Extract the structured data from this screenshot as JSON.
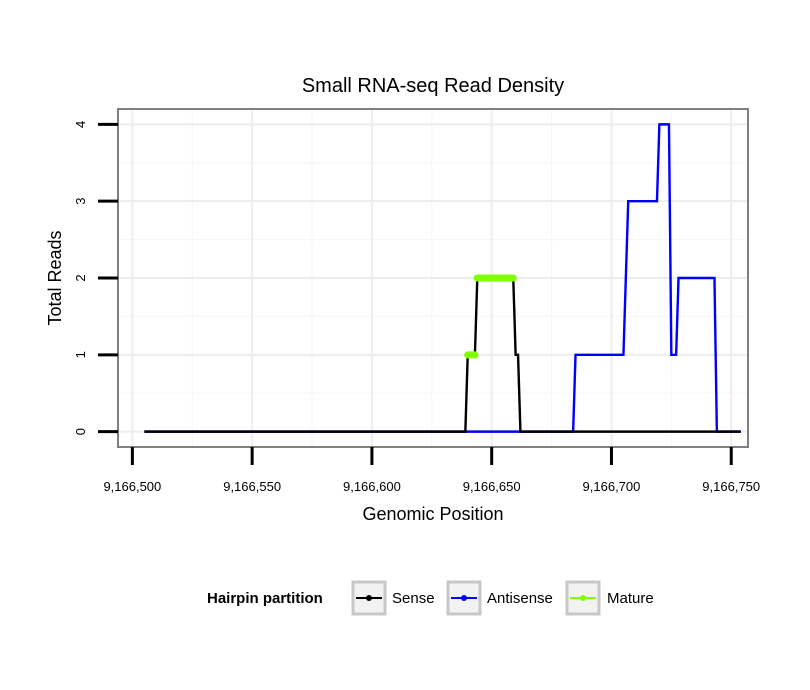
{
  "chart_data": {
    "type": "line",
    "title": "Small RNA-seq Read Density",
    "xlabel": "Genomic Position",
    "ylabel": "Total Reads",
    "xlim": [
      9166494,
      9166757
    ],
    "ylim": [
      -0.2,
      4.2
    ],
    "x_ticks": [
      9166500,
      9166550,
      9166600,
      9166650,
      9166700,
      9166750
    ],
    "x_tick_labels": [
      "9,166,500",
      "9,166,550",
      "9,166,600",
      "9,166,650",
      "9,166,700",
      "9,166,750"
    ],
    "y_ticks": [
      0,
      1,
      2,
      3,
      4
    ],
    "y_tick_labels": [
      "0",
      "1",
      "2",
      "3",
      "4"
    ],
    "grid": true,
    "legend": {
      "title": "Hairpin partition",
      "position": "bottom",
      "entries": [
        "Sense",
        "Antisense",
        "Mature"
      ]
    },
    "series": [
      {
        "name": "Antisense",
        "color": "#0000ff",
        "x": [
          9166505,
          9166684,
          9166685,
          9166705,
          9166706,
          9166707,
          9166719,
          9166720,
          9166724,
          9166725,
          9166727,
          9166728,
          9166743,
          9166744,
          9166754
        ],
        "values": [
          0,
          0,
          1,
          1,
          2,
          3,
          3,
          4,
          4,
          1,
          1,
          2,
          2,
          0,
          0
        ]
      },
      {
        "name": "Sense",
        "color": "#000000",
        "x": [
          9166505,
          9166639,
          9166640,
          9166643,
          9166644,
          9166659,
          9166660,
          9166661,
          9166662,
          9166754
        ],
        "values": [
          0,
          0,
          1,
          1,
          2,
          2,
          1,
          1,
          0,
          0
        ]
      },
      {
        "name": "Mature",
        "color": "#7fff00",
        "segments": [
          {
            "x": [
              9166640,
              9166643
            ],
            "values": [
              1,
              1
            ]
          },
          {
            "x": [
              9166644,
              9166659
            ],
            "values": [
              2,
              2
            ]
          }
        ]
      }
    ]
  }
}
